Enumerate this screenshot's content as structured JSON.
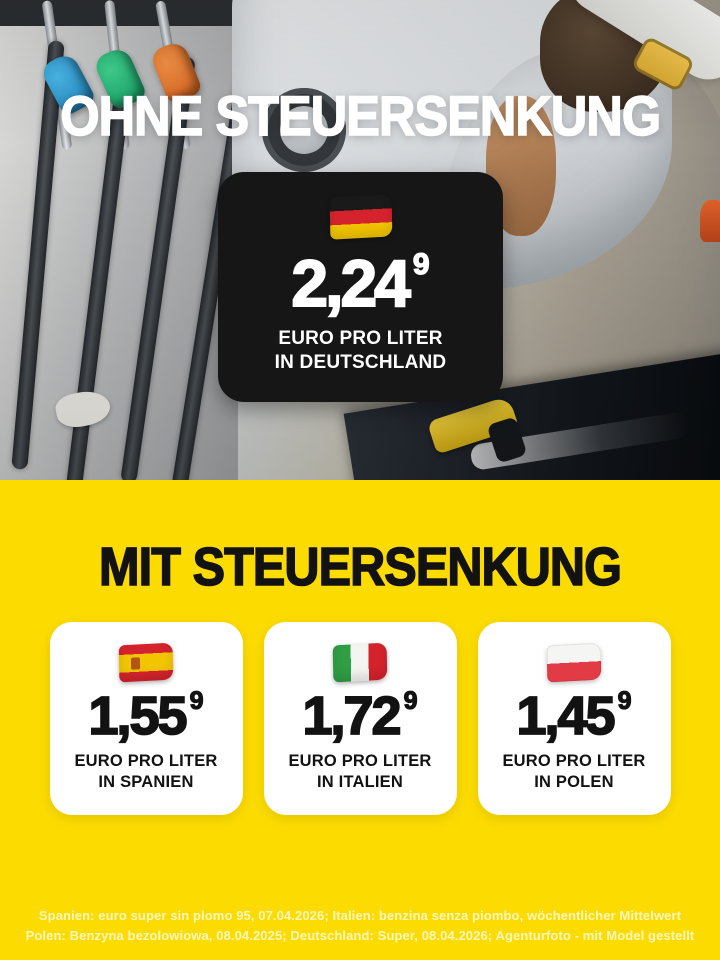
{
  "colors": {
    "accent_yellow": "#FCDC00",
    "black_card": "#161616",
    "card_white": "#FFFFFF",
    "headline_top": "#FFFFFF",
    "headline_bottom": "#121212"
  },
  "top_section": {
    "headline": "OHNE STEUERSENKUNG",
    "price_card": {
      "flag": "germany-flag",
      "price": "2,24",
      "price_superscript": "9",
      "label_line1": "EURO PRO LITER",
      "label_line2": "IN DEUTSCHLAND"
    }
  },
  "bottom_section": {
    "headline": "MIT STEUERSENKUNG",
    "price_cards": [
      {
        "flag": "spain-flag",
        "price": "1,55",
        "price_superscript": "9",
        "label_line1": "EURO PRO LITER",
        "label_line2": "IN SPANIEN"
      },
      {
        "flag": "italy-flag",
        "price": "1,72",
        "price_superscript": "9",
        "label_line1": "EURO PRO LITER",
        "label_line2": "IN ITALIEN"
      },
      {
        "flag": "poland-flag",
        "price": "1,45",
        "price_superscript": "9",
        "label_line1": "EURO PRO LITER",
        "label_line2": "IN POLEN"
      }
    ],
    "footnote": {
      "line1": "Spanien: euro super sin plomo 95, 07.04.2026; Italien: benzina senza piombo, wöchentlicher Mittelwert",
      "line2": "Polen: Benzyna bezolowiowa, 08.04.2025; Deutschland: Super, 08.04.2026; Agenturfoto - mit Model gestellt"
    }
  }
}
